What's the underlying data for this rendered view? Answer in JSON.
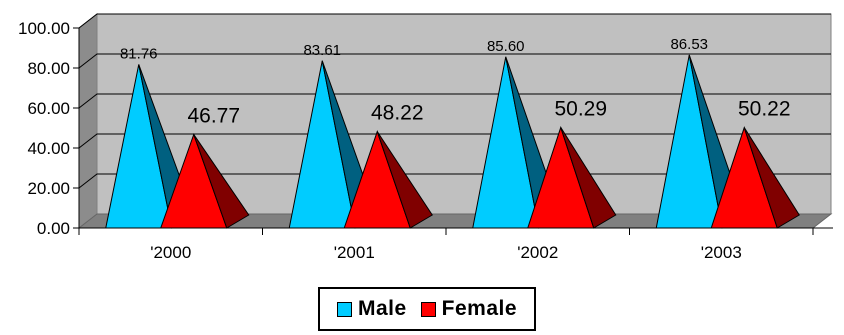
{
  "chart_data": {
    "type": "bar",
    "bar_shape": "pyramid-3d",
    "categories": [
      "'2000",
      "'2001",
      "'2002",
      "'2003"
    ],
    "series": [
      {
        "name": "Male",
        "values": [
          81.76,
          83.61,
          85.6,
          86.53
        ],
        "labels": [
          "81.76",
          "83.61",
          "85.60",
          "86.53"
        ],
        "color": "#00ccff",
        "shade": "#006080"
      },
      {
        "name": "Female",
        "values": [
          46.77,
          48.22,
          50.29,
          50.22
        ],
        "labels": [
          "46.77",
          "48.22",
          "50.29",
          "50.22"
        ],
        "color": "#ff0000",
        "shade": "#800000"
      }
    ],
    "yticks": [
      "0.00",
      "20.00",
      "40.00",
      "60.00",
      "80.00",
      "100.00"
    ],
    "ylim": [
      0,
      100
    ],
    "grid": true,
    "wall_color": "#c0c0c0",
    "legend_position": "bottom"
  }
}
